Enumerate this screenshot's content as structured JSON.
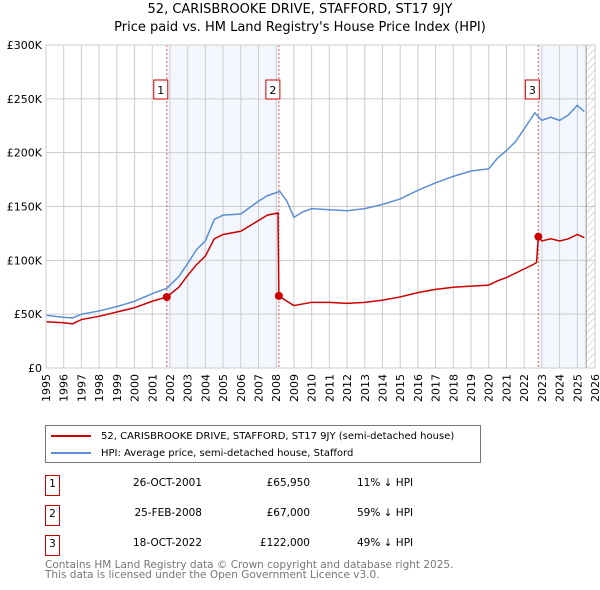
{
  "chart_data": {
    "type": "line",
    "title": "52, CARISBROOKE DRIVE, STAFFORD, ST17 9JY",
    "subtitle": "Price paid vs. HM Land Registry's House Price Index (HPI)",
    "xlim": [
      1995,
      2026
    ],
    "ylim": [
      0,
      300000
    ],
    "x_ticks": [
      "1995",
      "1996",
      "1997",
      "1998",
      "1999",
      "2000",
      "2001",
      "2002",
      "2003",
      "2004",
      "2005",
      "2006",
      "2007",
      "2008",
      "2009",
      "2010",
      "2011",
      "2012",
      "2013",
      "2014",
      "2015",
      "2016",
      "2017",
      "2018",
      "2019",
      "2020",
      "2021",
      "2022",
      "2023",
      "2024",
      "2025",
      "2026"
    ],
    "y_ticks": [
      {
        "v": 0,
        "label": "£0"
      },
      {
        "v": 50000,
        "label": "£50K"
      },
      {
        "v": 100000,
        "label": "£100K"
      },
      {
        "v": 150000,
        "label": "£150K"
      },
      {
        "v": 200000,
        "label": "£200K"
      },
      {
        "v": 250000,
        "label": "£250K"
      },
      {
        "v": 300000,
        "label": "£300K"
      }
    ],
    "grid": true,
    "shaded_ranges": [
      [
        2001.82,
        2008.15
      ],
      [
        2022.8,
        2025.5
      ]
    ],
    "future_hatch_from": 2025.5,
    "series": [
      {
        "name": "52, CARISBROOKE DRIVE, STAFFORD, ST17 9JY (semi-detached house)",
        "color": "#cc0000",
        "points": [
          [
            1995,
            43000
          ],
          [
            1996,
            42000
          ],
          [
            1996.5,
            41000
          ],
          [
            1997,
            45000
          ],
          [
            1998,
            48000
          ],
          [
            1999,
            52000
          ],
          [
            2000,
            56000
          ],
          [
            2001,
            62000
          ],
          [
            2001.82,
            65950
          ],
          [
            2002.5,
            75000
          ],
          [
            2003,
            86000
          ],
          [
            2003.5,
            96000
          ],
          [
            2004,
            104000
          ],
          [
            2004.5,
            120000
          ],
          [
            2005,
            124000
          ],
          [
            2006,
            127000
          ],
          [
            2007,
            137000
          ],
          [
            2007.5,
            142000
          ],
          [
            2008.1,
            144000
          ],
          [
            2008.15,
            67000
          ],
          [
            2008.6,
            62000
          ],
          [
            2009,
            58000
          ],
          [
            2010,
            61000
          ],
          [
            2011,
            61000
          ],
          [
            2012,
            60000
          ],
          [
            2013,
            61000
          ],
          [
            2014,
            63000
          ],
          [
            2015,
            66000
          ],
          [
            2016,
            70000
          ],
          [
            2017,
            73000
          ],
          [
            2018,
            75000
          ],
          [
            2019,
            76000
          ],
          [
            2020,
            77000
          ],
          [
            2020.5,
            81000
          ],
          [
            2021,
            84000
          ],
          [
            2021.5,
            88000
          ],
          [
            2022.5,
            96000
          ],
          [
            2022.7,
            98000
          ],
          [
            2022.8,
            122000
          ],
          [
            2023,
            118000
          ],
          [
            2023.5,
            120000
          ],
          [
            2024,
            118000
          ],
          [
            2024.5,
            120000
          ],
          [
            2025,
            124000
          ],
          [
            2025.4,
            121000
          ]
        ]
      },
      {
        "name": "HPI: Average price, semi-detached house, Stafford",
        "color": "#5b8fd4",
        "points": [
          [
            1995,
            49000
          ],
          [
            1996,
            47000
          ],
          [
            1996.5,
            46500
          ],
          [
            1997,
            50000
          ],
          [
            1998,
            53000
          ],
          [
            1999,
            57000
          ],
          [
            2000,
            62000
          ],
          [
            2001,
            69000
          ],
          [
            2001.82,
            74000
          ],
          [
            2002.5,
            85000
          ],
          [
            2003,
            97000
          ],
          [
            2003.5,
            110000
          ],
          [
            2004,
            118000
          ],
          [
            2004.5,
            138000
          ],
          [
            2005,
            142000
          ],
          [
            2006,
            143000
          ],
          [
            2007,
            155000
          ],
          [
            2007.5,
            160000
          ],
          [
            2008.2,
            164000
          ],
          [
            2008.6,
            155000
          ],
          [
            2009,
            140000
          ],
          [
            2009.5,
            145000
          ],
          [
            2010,
            148000
          ],
          [
            2011,
            147000
          ],
          [
            2012,
            146000
          ],
          [
            2013,
            148000
          ],
          [
            2014,
            152000
          ],
          [
            2015,
            157000
          ],
          [
            2016,
            165000
          ],
          [
            2017,
            172000
          ],
          [
            2018,
            178000
          ],
          [
            2019,
            183000
          ],
          [
            2020,
            185000
          ],
          [
            2020.5,
            195000
          ],
          [
            2021,
            202000
          ],
          [
            2021.5,
            210000
          ],
          [
            2022,
            222000
          ],
          [
            2022.6,
            237000
          ],
          [
            2023,
            230000
          ],
          [
            2023.5,
            233000
          ],
          [
            2024,
            230000
          ],
          [
            2024.5,
            235000
          ],
          [
            2025,
            244000
          ],
          [
            2025.4,
            238000
          ]
        ]
      }
    ],
    "sales": [
      {
        "n": "1",
        "x": 2001.82,
        "y": 65950
      },
      {
        "n": "2",
        "x": 2008.15,
        "y": 67000
      },
      {
        "n": "3",
        "x": 2022.8,
        "y": 122000
      }
    ]
  },
  "legend": {
    "property": "52, CARISBROOKE DRIVE, STAFFORD, ST17 9JY (semi-detached house)",
    "hpi": "HPI: Average price, semi-detached house, Stafford"
  },
  "transactions": [
    {
      "n": "1",
      "date": "26-OCT-2001",
      "price": "£65,950",
      "hpi": "11% ↓ HPI"
    },
    {
      "n": "2",
      "date": "25-FEB-2008",
      "price": "£67,000",
      "hpi": "59% ↓ HPI"
    },
    {
      "n": "3",
      "date": "18-OCT-2022",
      "price": "£122,000",
      "hpi": "49% ↓ HPI"
    }
  ],
  "footer": {
    "line1": "Contains HM Land Registry data © Crown copyright and database right 2025.",
    "line2": "This data is licensed under the Open Government Licence v3.0."
  }
}
